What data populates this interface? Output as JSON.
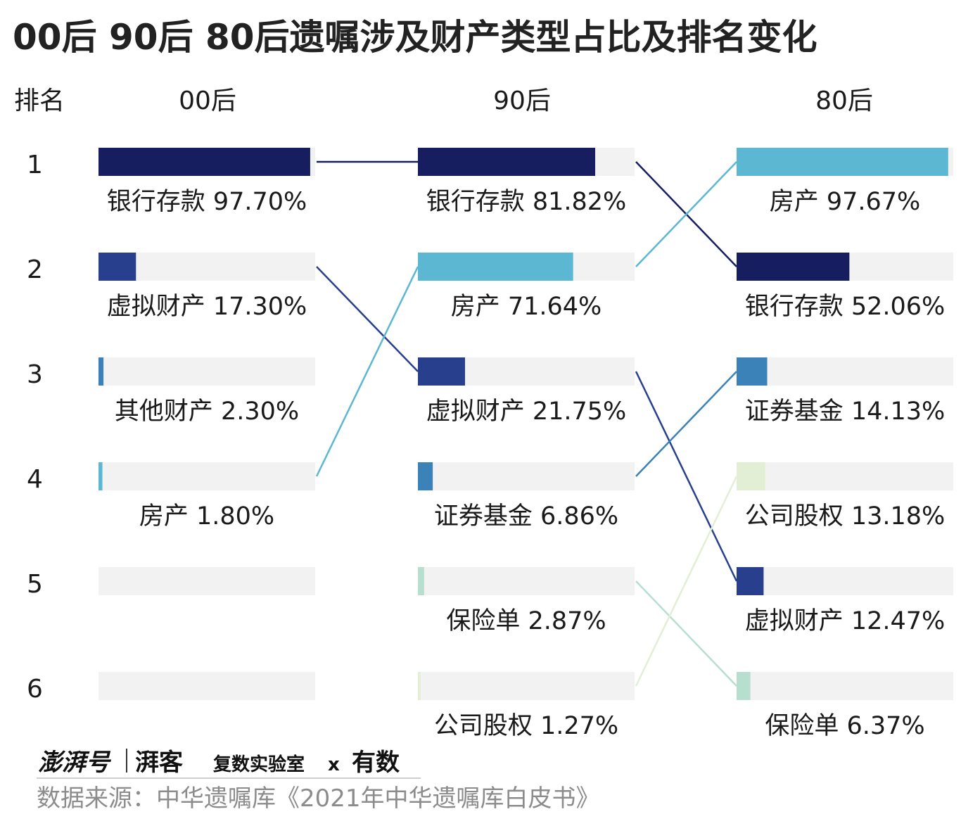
{
  "chart_data": {
    "type": "bar",
    "title": "00后 90后 80后遗嘱涉及财产类型占比及排名变化",
    "rank_header": "排名",
    "ranks": [
      "1",
      "2",
      "3",
      "4",
      "5",
      "6"
    ],
    "xlim": [
      0,
      100
    ],
    "groups": [
      {
        "name": "00后",
        "items": [
          {
            "rank": 1,
            "category": "银行存款",
            "value": 97.7,
            "label": "银行存款 97.70%"
          },
          {
            "rank": 2,
            "category": "虚拟财产",
            "value": 17.3,
            "label": "虚拟财产 17.30%"
          },
          {
            "rank": 3,
            "category": "其他财产",
            "value": 2.3,
            "label": "其他财产 2.30%"
          },
          {
            "rank": 4,
            "category": "房产",
            "value": 1.8,
            "label": "房产 1.80%"
          }
        ]
      },
      {
        "name": "90后",
        "items": [
          {
            "rank": 1,
            "category": "银行存款",
            "value": 81.82,
            "label": "银行存款 81.82%"
          },
          {
            "rank": 2,
            "category": "房产",
            "value": 71.64,
            "label": "房产 71.64%"
          },
          {
            "rank": 3,
            "category": "虚拟财产",
            "value": 21.75,
            "label": "虚拟财产 21.75%"
          },
          {
            "rank": 4,
            "category": "证券基金",
            "value": 6.86,
            "label": "证券基金 6.86%"
          },
          {
            "rank": 5,
            "category": "保险单",
            "value": 2.87,
            "label": "保险单 2.87%"
          },
          {
            "rank": 6,
            "category": "公司股权",
            "value": 1.27,
            "label": "公司股权 1.27%"
          }
        ]
      },
      {
        "name": "80后",
        "items": [
          {
            "rank": 1,
            "category": "房产",
            "value": 97.67,
            "label": "房产 97.67%"
          },
          {
            "rank": 2,
            "category": "银行存款",
            "value": 52.06,
            "label": "银行存款 52.06%"
          },
          {
            "rank": 3,
            "category": "证券基金",
            "value": 14.13,
            "label": "证券基金 14.13%"
          },
          {
            "rank": 4,
            "category": "公司股权",
            "value": 13.18,
            "label": "公司股权 13.18%"
          },
          {
            "rank": 5,
            "category": "虚拟财产",
            "value": 12.47,
            "label": "虚拟财产 12.47%"
          },
          {
            "rank": 6,
            "category": "保险单",
            "value": 6.37,
            "label": "保险单 6.37%"
          }
        ]
      }
    ],
    "colors": {
      "银行存款": "#161e5f",
      "虚拟财产": "#283f8e",
      "其他财产": "#3a82b8",
      "房产": "#5bb7d2",
      "证券基金": "#3a82b8",
      "保险单": "#b7dfcf",
      "公司股权": "#e2efd4",
      "track": "#f2f2f2"
    }
  },
  "footer": {
    "logo_main": "澎湃号",
    "logo_sub": "湃客",
    "logo_lab": "复数实验室",
    "logo_x": "x",
    "logo_num": "有数",
    "source": "数据来源：中华遗嘱库《2021年中华遗嘱库白皮书》"
  }
}
